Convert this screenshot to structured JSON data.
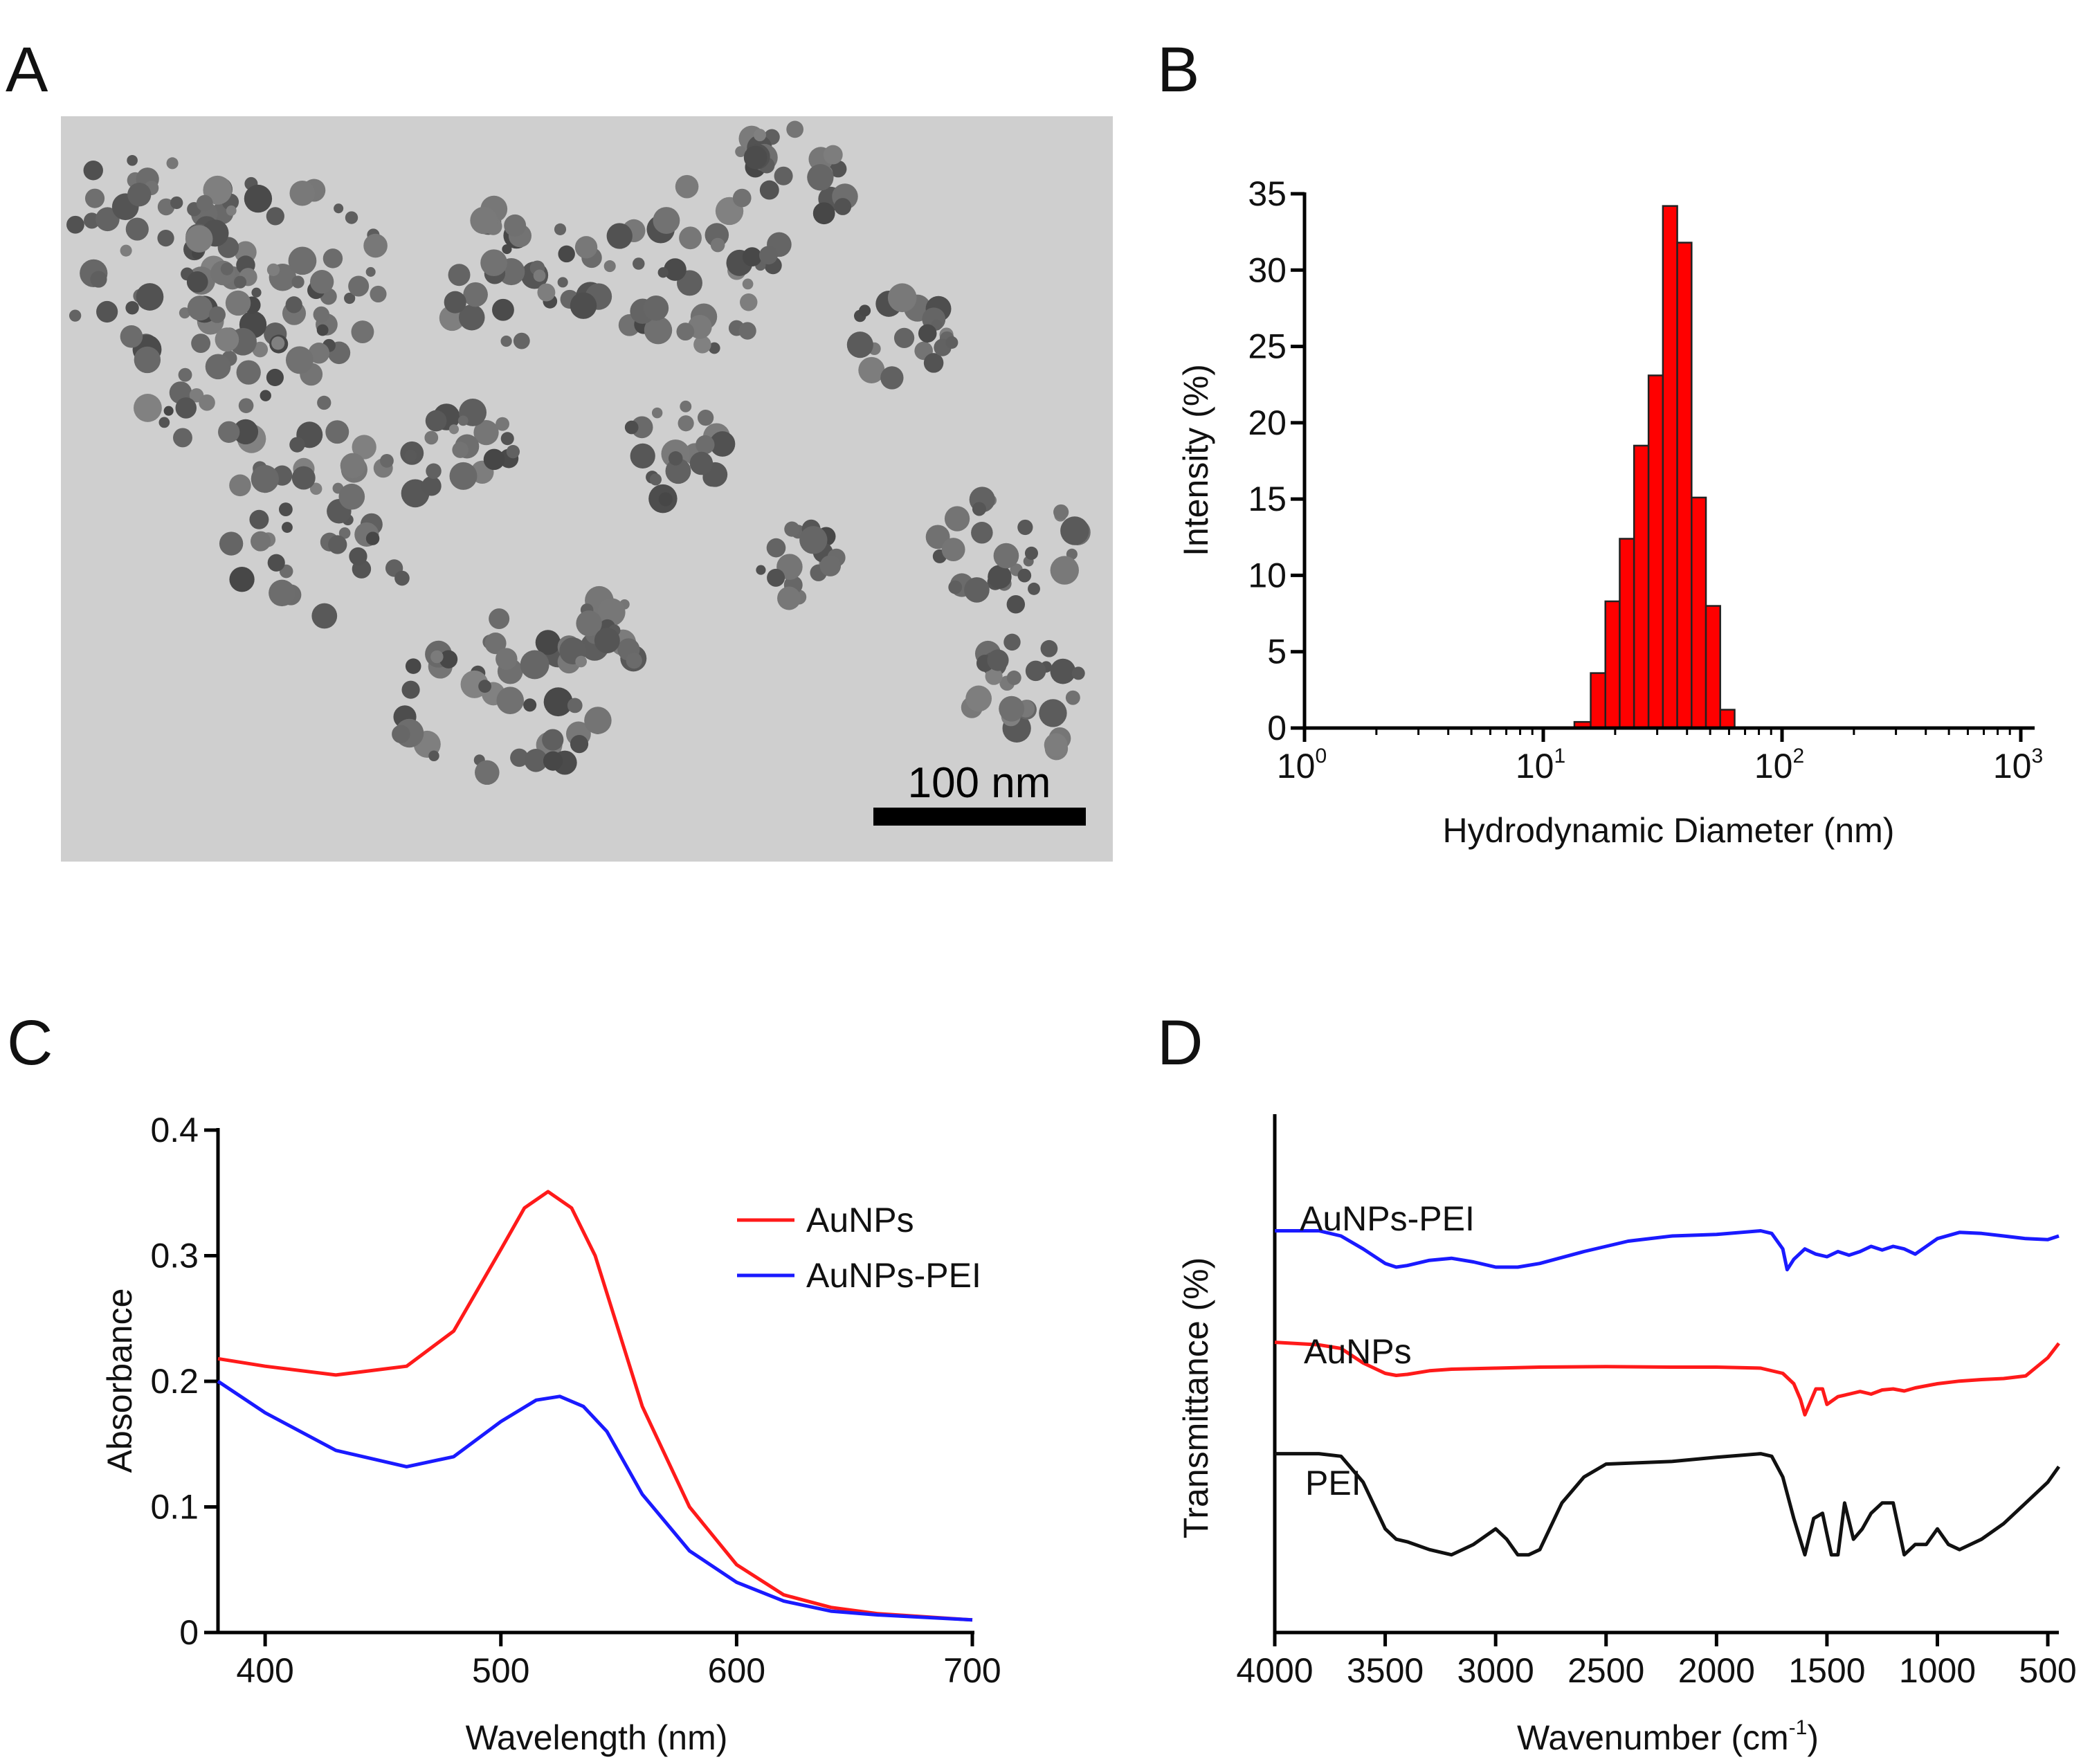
{
  "colors": {
    "red": "#ff1a1a",
    "blue": "#1a1aff",
    "black": "#111111",
    "bar_edge": "#222222",
    "tem_bg": "#cfcfcf"
  },
  "panels": {
    "a": "A",
    "b": "B",
    "c": "C",
    "d": "D"
  },
  "tem": {
    "scale_label": "100 nm"
  },
  "chart_data": [
    {
      "panel": "B",
      "type": "bar",
      "xscale": "log",
      "xlabel": "Hydrodynamic Diameter (nm)",
      "ylabel": "Intensity (%)",
      "xlim": [
        1,
        1000
      ],
      "ylim": [
        0,
        35
      ],
      "xticks": [
        {
          "base": "10",
          "exp": "0"
        },
        {
          "base": "10",
          "exp": "1"
        },
        {
          "base": "10",
          "exp": "2"
        },
        {
          "base": "10",
          "exp": "3"
        }
      ],
      "yticks": [
        "0",
        "5",
        "10",
        "15",
        "20",
        "25",
        "30",
        "35"
      ],
      "bin_edges": [
        13.5,
        15.8,
        18.2,
        20.9,
        24.0,
        27.6,
        31.7,
        36.4,
        41.8,
        48.0,
        55.1,
        63.3
      ],
      "values": [
        0.4,
        3.6,
        8.3,
        12.4,
        18.5,
        23.1,
        34.2,
        31.8,
        15.1,
        8.0,
        1.2
      ]
    },
    {
      "panel": "C",
      "type": "line",
      "xlabel": "Wavelength (nm)",
      "ylabel": "Absorbance",
      "xlim": [
        380,
        700
      ],
      "ylim": [
        0,
        0.4
      ],
      "xticks": [
        "400",
        "500",
        "600",
        "700"
      ],
      "yticks": [
        "0",
        "0.1",
        "0.2",
        "0.3",
        "0.4"
      ],
      "series": [
        {
          "name": "AuNPs",
          "color": "red",
          "x": [
            380,
            400,
            430,
            460,
            480,
            500,
            510,
            520,
            530,
            540,
            550,
            560,
            580,
            600,
            620,
            640,
            660,
            700
          ],
          "y": [
            0.218,
            0.212,
            0.205,
            0.212,
            0.24,
            0.305,
            0.338,
            0.351,
            0.338,
            0.3,
            0.24,
            0.18,
            0.1,
            0.054,
            0.03,
            0.02,
            0.015,
            0.01
          ]
        },
        {
          "name": "AuNPs-PEI",
          "color": "blue",
          "x": [
            380,
            400,
            430,
            460,
            480,
            500,
            515,
            525,
            535,
            545,
            560,
            580,
            600,
            620,
            640,
            660,
            700
          ],
          "y": [
            0.2,
            0.175,
            0.145,
            0.132,
            0.14,
            0.168,
            0.185,
            0.188,
            0.18,
            0.16,
            0.11,
            0.065,
            0.04,
            0.025,
            0.017,
            0.014,
            0.01
          ]
        }
      ]
    },
    {
      "panel": "D",
      "type": "line",
      "xlabel": "Wavenumber (cm",
      "xlabel_sup": "-1",
      "xlabel_end": ")",
      "ylabel": "Transmittance (%)",
      "xlim": [
        4000,
        450
      ],
      "xticks": [
        "4000",
        "3500",
        "3000",
        "2500",
        "2000",
        "1500",
        "1000",
        "500"
      ],
      "ylim": [
        0,
        1
      ],
      "series": [
        {
          "name": "AuNPs-PEI",
          "label": "AuNPs-PEI",
          "color": "blue",
          "x": [
            4000,
            3800,
            3700,
            3600,
            3500,
            3450,
            3400,
            3300,
            3200,
            3100,
            3000,
            2900,
            2800,
            2600,
            2400,
            2200,
            2000,
            1800,
            1750,
            1700,
            1680,
            1650,
            1600,
            1550,
            1500,
            1450,
            1400,
            1350,
            1300,
            1250,
            1200,
            1150,
            1100,
            1050,
            1000,
            900,
            800,
            700,
            600,
            500,
            450
          ],
          "y": [
            0.775,
            0.775,
            0.765,
            0.74,
            0.712,
            0.705,
            0.708,
            0.718,
            0.722,
            0.715,
            0.705,
            0.705,
            0.712,
            0.735,
            0.755,
            0.765,
            0.768,
            0.775,
            0.77,
            0.74,
            0.7,
            0.72,
            0.74,
            0.73,
            0.725,
            0.735,
            0.728,
            0.735,
            0.745,
            0.738,
            0.745,
            0.74,
            0.73,
            0.745,
            0.76,
            0.772,
            0.77,
            0.765,
            0.76,
            0.758,
            0.765
          ]
        },
        {
          "name": "AuNPs",
          "label": "AuNPs",
          "color": "red",
          "x": [
            4000,
            3800,
            3700,
            3600,
            3500,
            3450,
            3400,
            3300,
            3200,
            3000,
            2800,
            2500,
            2200,
            2000,
            1800,
            1700,
            1650,
            1620,
            1600,
            1550,
            1520,
            1500,
            1450,
            1400,
            1350,
            1300,
            1250,
            1200,
            1150,
            1100,
            1000,
            900,
            800,
            700,
            600,
            500,
            450
          ],
          "y": [
            0.56,
            0.555,
            0.548,
            0.52,
            0.5,
            0.496,
            0.498,
            0.505,
            0.508,
            0.51,
            0.512,
            0.513,
            0.512,
            0.512,
            0.51,
            0.5,
            0.48,
            0.45,
            0.42,
            0.47,
            0.47,
            0.44,
            0.455,
            0.46,
            0.465,
            0.46,
            0.468,
            0.47,
            0.466,
            0.472,
            0.48,
            0.485,
            0.488,
            0.49,
            0.495,
            0.53,
            0.558
          ]
        },
        {
          "name": "PEI",
          "label": "PEI",
          "color": "black",
          "x": [
            4000,
            3800,
            3700,
            3600,
            3500,
            3450,
            3400,
            3300,
            3200,
            3100,
            3000,
            2950,
            2900,
            2850,
            2800,
            2700,
            2600,
            2500,
            2200,
            2000,
            1800,
            1750,
            1700,
            1650,
            1600,
            1560,
            1520,
            1480,
            1450,
            1420,
            1380,
            1340,
            1300,
            1250,
            1200,
            1150,
            1100,
            1050,
            1000,
            950,
            900,
            850,
            800,
            700,
            600,
            500,
            450
          ],
          "y": [
            0.345,
            0.345,
            0.34,
            0.29,
            0.2,
            0.18,
            0.175,
            0.16,
            0.15,
            0.17,
            0.2,
            0.18,
            0.15,
            0.15,
            0.16,
            0.25,
            0.3,
            0.325,
            0.33,
            0.338,
            0.345,
            0.34,
            0.3,
            0.22,
            0.15,
            0.22,
            0.23,
            0.15,
            0.15,
            0.25,
            0.18,
            0.2,
            0.23,
            0.25,
            0.25,
            0.15,
            0.17,
            0.17,
            0.2,
            0.17,
            0.16,
            0.17,
            0.18,
            0.21,
            0.25,
            0.29,
            0.32
          ]
        }
      ]
    }
  ]
}
